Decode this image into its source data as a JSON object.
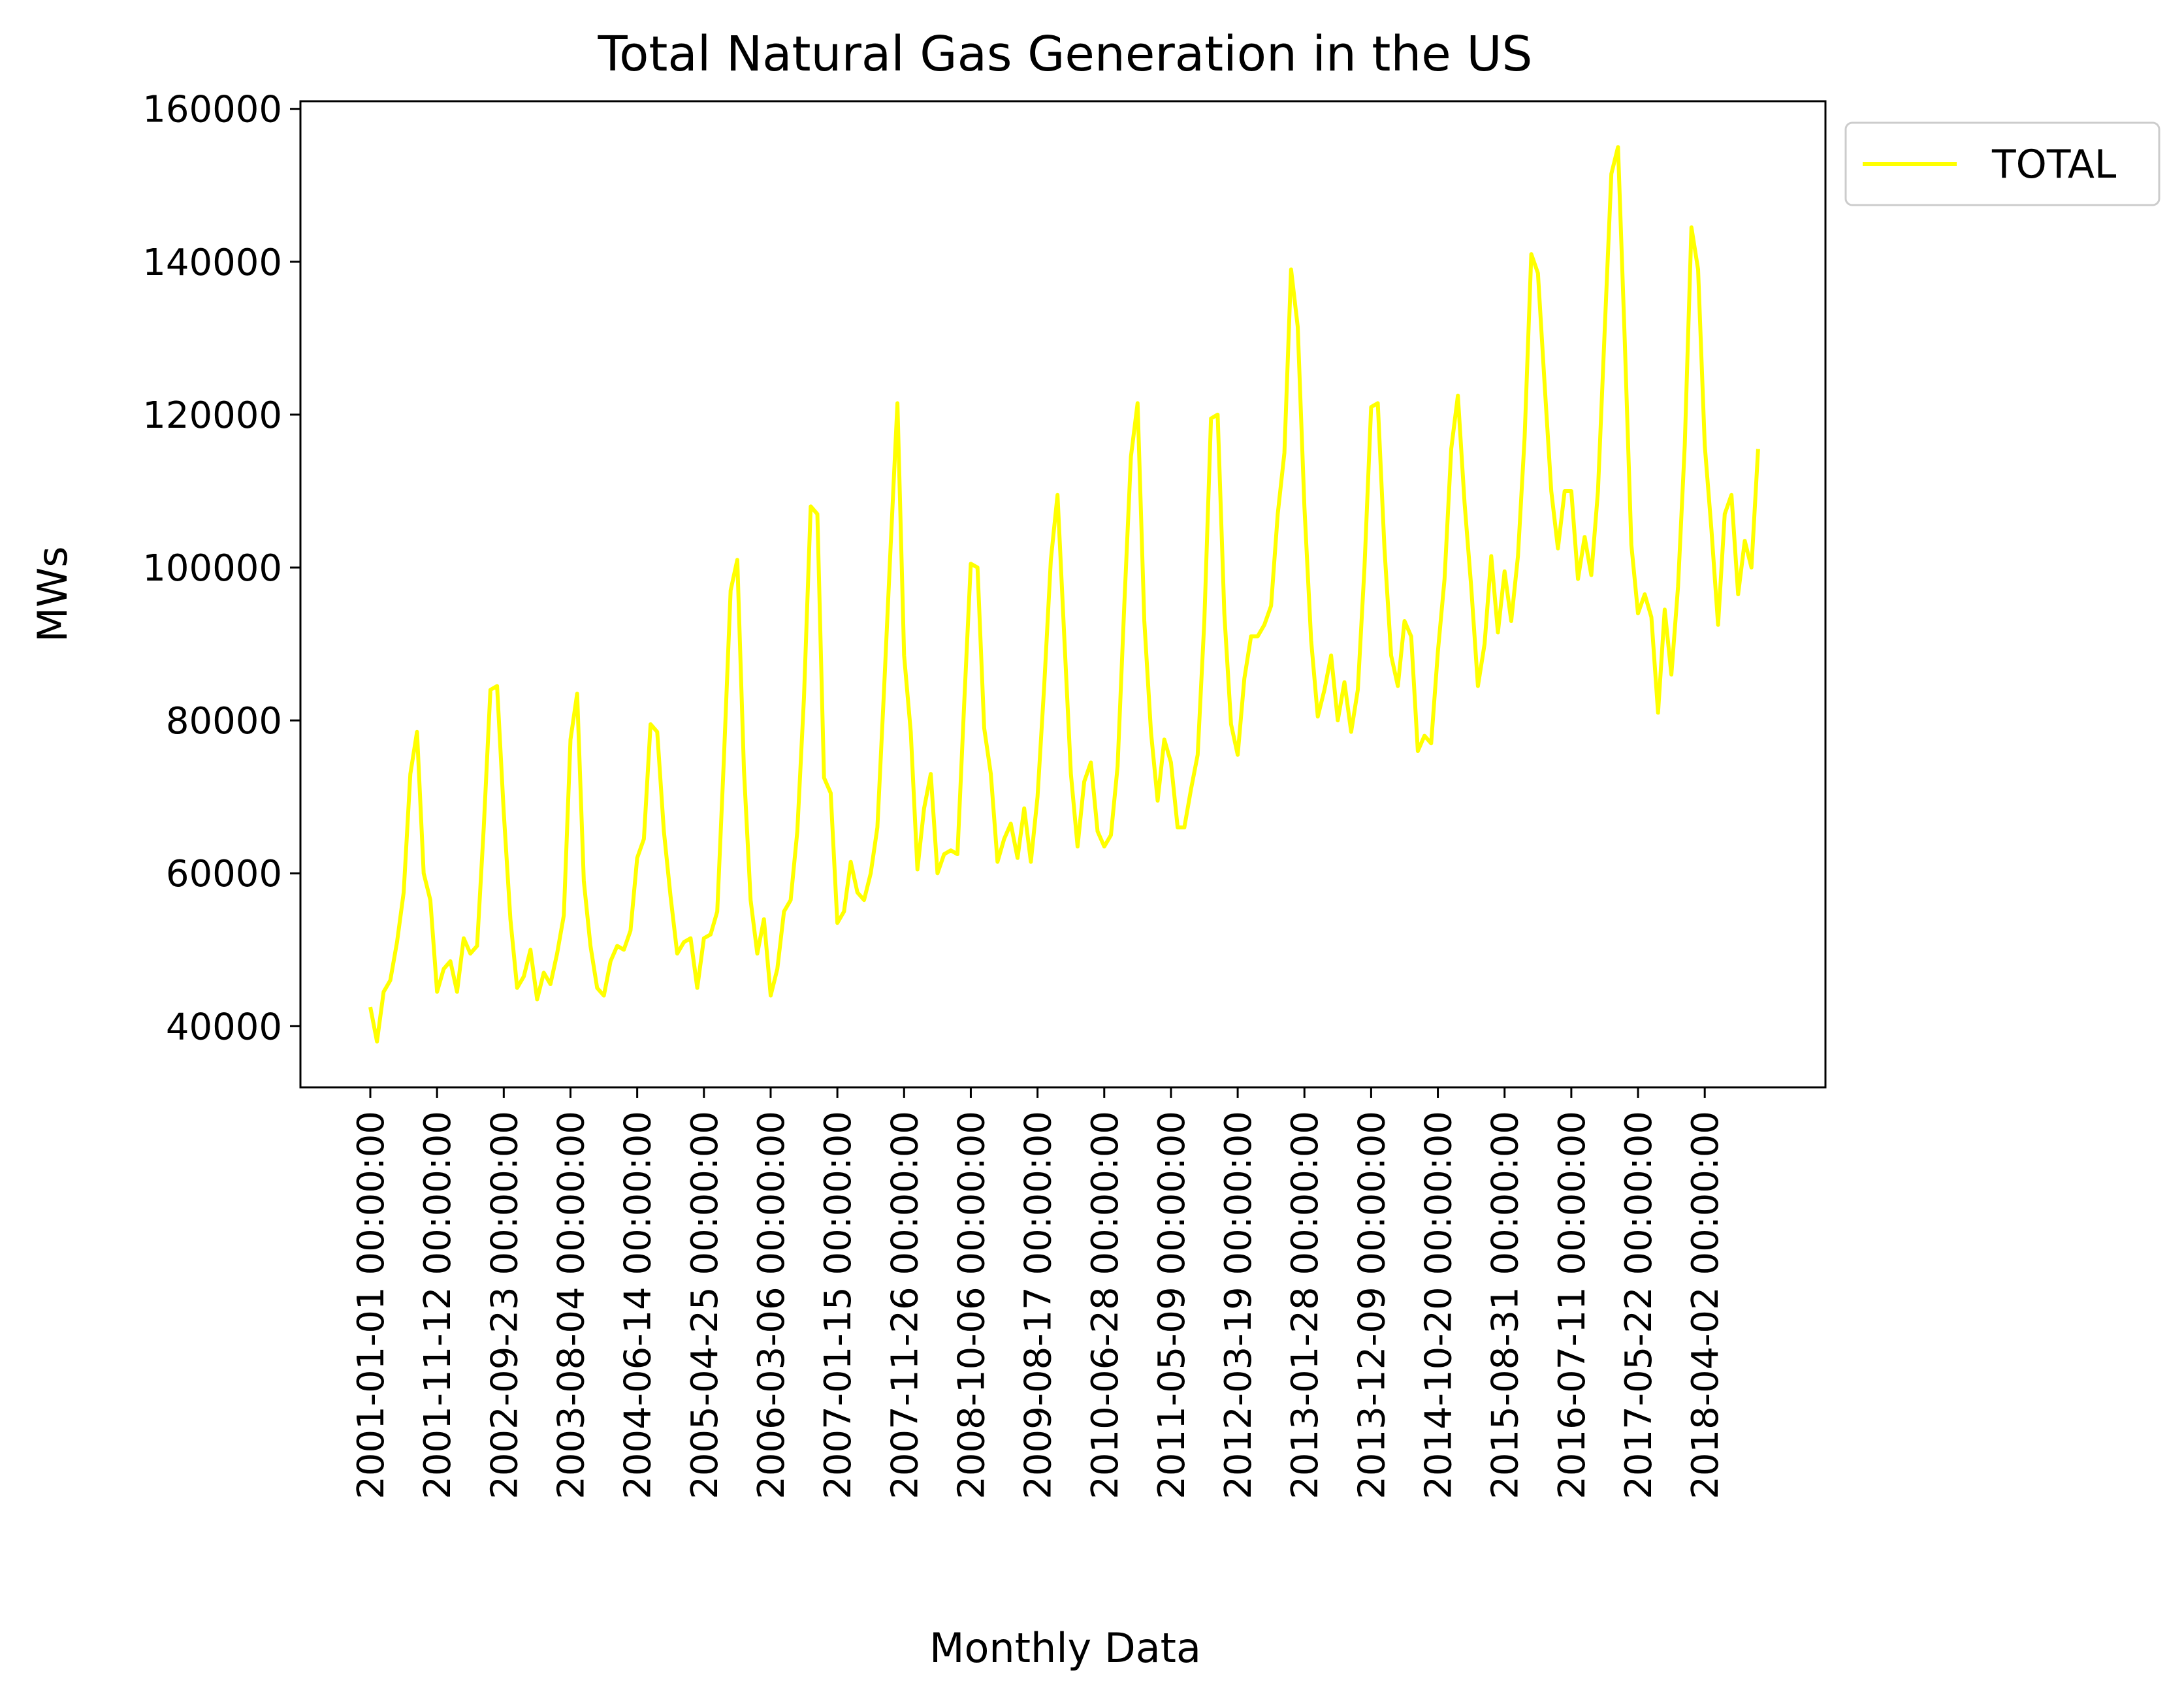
{
  "chart_data": {
    "type": "line",
    "title": "Total Natural Gas Generation in the US",
    "xlabel": "Monthly Data",
    "ylabel": "MWs",
    "ylim": [
      32000,
      161000
    ],
    "yticks": [
      40000,
      60000,
      80000,
      100000,
      120000,
      140000,
      160000
    ],
    "xtick_labels": [
      "2001-01-01 00:00:00",
      "2001-11-12 00:00:00",
      "2002-09-23 00:00:00",
      "2003-08-04 00:00:00",
      "2004-06-14 00:00:00",
      "2005-04-25 00:00:00",
      "2006-03-06 00:00:00",
      "2007-01-15 00:00:00",
      "2007-11-26 00:00:00",
      "2008-10-06 00:00:00",
      "2009-08-17 00:00:00",
      "2010-06-28 00:00:00",
      "2011-05-09 00:00:00",
      "2012-03-19 00:00:00",
      "2013-01-28 00:00:00",
      "2013-12-09 00:00:00",
      "2014-10-20 00:00:00",
      "2015-08-31 00:00:00",
      "2016-07-11 00:00:00",
      "2017-05-22 00:00:00",
      "2018-04-02 00:00:00"
    ],
    "x_start": "2001-01-01",
    "x_step_months": 1,
    "grid": false,
    "legend_position": "outside-top-right",
    "series": [
      {
        "name": "TOTAL",
        "color": "#ffff00",
        "values": [
          42500,
          38000,
          44500,
          46000,
          51000,
          57500,
          73000,
          78500,
          60000,
          56500,
          44500,
          47500,
          48500,
          44500,
          51500,
          49500,
          50500,
          66000,
          84000,
          84500,
          68000,
          54000,
          45000,
          46500,
          50000,
          43500,
          47000,
          45500,
          49500,
          54500,
          77500,
          83500,
          59000,
          50500,
          45000,
          44000,
          48500,
          50500,
          50000,
          52500,
          62000,
          64500,
          79500,
          78500,
          65500,
          57000,
          49500,
          51000,
          51500,
          45000,
          51500,
          52000,
          55000,
          75000,
          97000,
          101000,
          73500,
          56500,
          49500,
          54000,
          44000,
          47500,
          55000,
          56500,
          65500,
          83000,
          108000,
          107000,
          72500,
          70500,
          53500,
          55000,
          61500,
          57500,
          56500,
          60000,
          66000,
          84000,
          103000,
          121500,
          88500,
          78500,
          60500,
          68500,
          73000,
          60000,
          62500,
          63000,
          62500,
          82000,
          100500,
          100000,
          79000,
          73000,
          61500,
          64500,
          66500,
          62000,
          68500,
          61500,
          70000,
          84500,
          101000,
          109500,
          91000,
          73000,
          63500,
          72000,
          74500,
          65500,
          63500,
          65000,
          74000,
          95000,
          114500,
          121500,
          93000,
          78500,
          69500,
          77500,
          74500,
          66000,
          66000,
          71000,
          75500,
          93000,
          119500,
          120000,
          94000,
          79500,
          75500,
          85500,
          91000,
          91000,
          92500,
          95000,
          107000,
          115000,
          139000,
          131500,
          108000,
          90500,
          80500,
          84000,
          88500,
          80000,
          85000,
          78500,
          84000,
          100000,
          121000,
          121500,
          102500,
          88500,
          84500,
          93000,
          91000,
          76000,
          78000,
          77000,
          89000,
          98500,
          115500,
          122500,
          108500,
          97500,
          84500,
          90000,
          101500,
          91500,
          99500,
          93000,
          101500,
          117000,
          141000,
          138500,
          124000,
          110000,
          102500,
          110000,
          110000,
          98500,
          104000,
          99000,
          110000,
          131000,
          151500,
          155000,
          130000,
          103000,
          94000,
          96500,
          93500,
          81000,
          94500,
          86000,
          97500,
          116000,
          144500,
          139000,
          116000,
          105000,
          92500,
          107000,
          109500,
          96500,
          103500,
          100000,
          115500
        ]
      }
    ]
  }
}
